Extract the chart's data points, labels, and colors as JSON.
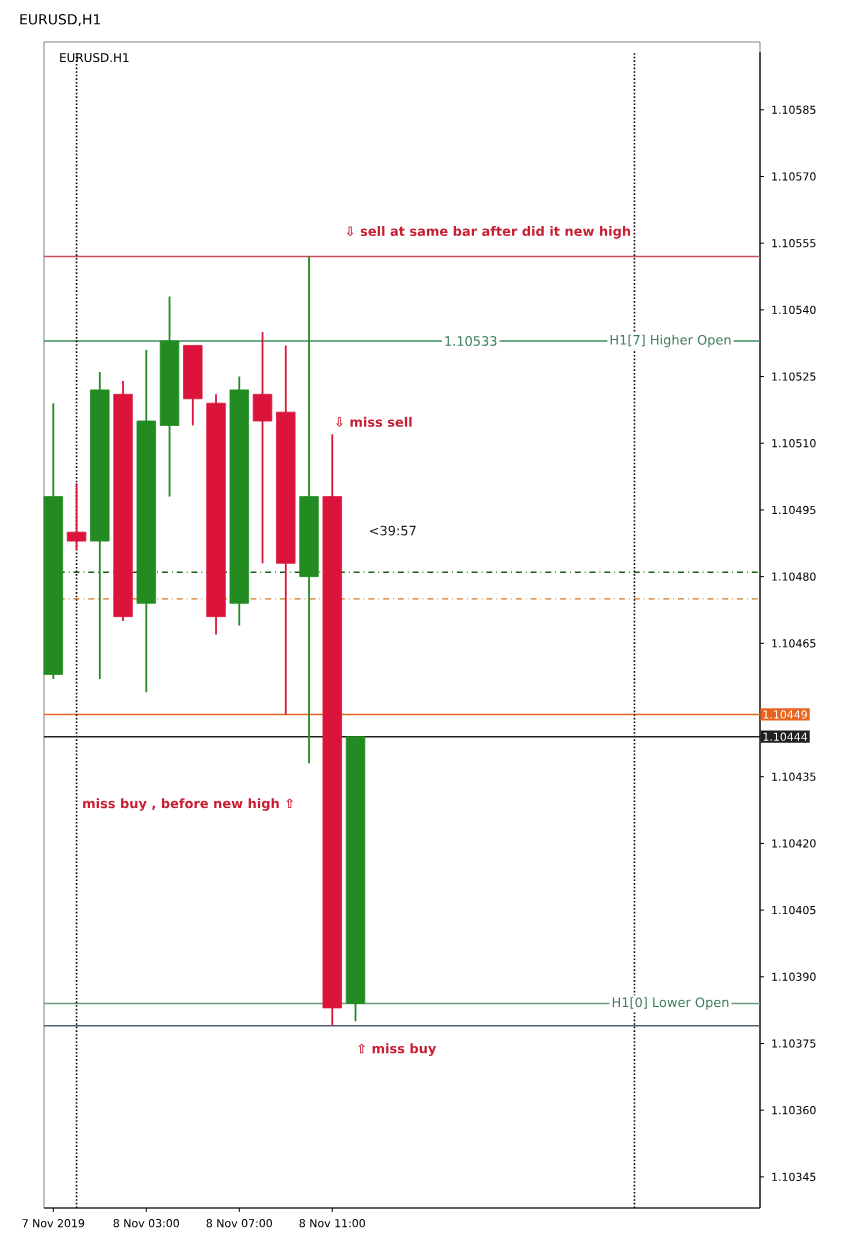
{
  "chart_data": {
    "type": "candlestick",
    "title": "EURUSD,H1",
    "subtitle": "EURUSD.H1",
    "x": [
      "2019-11-07T23:00",
      "2019-11-08T00:00",
      "2019-11-08T01:00",
      "2019-11-08T02:00",
      "2019-11-08T03:00",
      "2019-11-08T04:00",
      "2019-11-08T05:00",
      "2019-11-08T06:00",
      "2019-11-08T07:00",
      "2019-11-08T08:00",
      "2019-11-08T09:00",
      "2019-11-08T10:00",
      "2019-11-08T11:00",
      "2019-11-08T12:00"
    ],
    "xlim": [
      "2019-11-07T22:36",
      "2019-11-09T05:24"
    ],
    "xticks": [
      {
        "value": "2019-11-07T23:00",
        "label": "7 Nov 2019"
      },
      {
        "value": "2019-11-08T03:00",
        "label": "8 Nov 03:00"
      },
      {
        "value": "2019-11-08T07:00",
        "label": "8 Nov 07:00"
      },
      {
        "value": "2019-11-08T11:00",
        "label": "8 Nov 11:00"
      }
    ],
    "ohlc": [
      [
        1.10458,
        1.10519,
        1.10457,
        1.10498
      ],
      [
        1.1049,
        1.10501,
        1.10486,
        1.10488
      ],
      [
        1.10488,
        1.10526,
        1.10457,
        1.10522
      ],
      [
        1.10521,
        1.10524,
        1.1047,
        1.10471
      ],
      [
        1.10474,
        1.10531,
        1.10454,
        1.10515
      ],
      [
        1.10514,
        1.10543,
        1.10498,
        1.10533
      ],
      [
        1.10532,
        1.10532,
        1.10514,
        1.1052
      ],
      [
        1.10519,
        1.10521,
        1.10467,
        1.10471
      ],
      [
        1.10474,
        1.10525,
        1.10469,
        1.10522
      ],
      [
        1.10521,
        1.10535,
        1.10483,
        1.10515
      ],
      [
        1.10517,
        1.10532,
        1.10449,
        1.10483
      ],
      [
        1.1048,
        1.10552,
        1.10438,
        1.10498
      ],
      [
        1.10498,
        1.10512,
        1.10379,
        1.10383
      ],
      [
        1.10384,
        1.10444,
        1.1038,
        1.10444
      ]
    ],
    "colors": [
      "#228b22",
      "#dc143c",
      "#228b22",
      "#dc143c",
      "#228b22",
      "#228b22",
      "#dc143c",
      "#dc143c",
      "#228b22",
      "#dc143c",
      "#dc143c",
      "#228b22",
      "#dc143c",
      "#228b22"
    ],
    "ylim": [
      1.10338,
      1.10598
    ],
    "yticks": [
      1.10345,
      {
        "value": 1.1036,
        "label": "1.10360"
      },
      1.10375,
      {
        "value": 1.1039,
        "label": "1.10390"
      },
      1.10405,
      {
        "value": 1.1042,
        "label": "1.10420"
      },
      1.10435,
      1.10465,
      {
        "value": 1.1048,
        "label": "1.10480"
      },
      1.10495,
      {
        "value": 1.1051,
        "label": "1.10510"
      },
      1.10525,
      {
        "value": 1.1054,
        "label": "1.10540"
      },
      1.10555,
      {
        "value": 1.1057,
        "label": "1.10570"
      },
      1.10585
    ],
    "grid": false,
    "ref_lines": [
      {
        "axis": "y",
        "value": 1.10552,
        "color": "#c8505a",
        "line_style": "solid"
      },
      {
        "axis": "y",
        "value": 1.10533,
        "color": "#3c8c5a",
        "line_style": "solid"
      },
      {
        "axis": "y",
        "value": 1.10481,
        "color": "#1e5a1e",
        "line_style": "dashed"
      },
      {
        "axis": "y",
        "value": 1.10475,
        "color": "#d2781e",
        "line_style": "dashed"
      },
      {
        "axis": "y",
        "value": 1.10449,
        "color": "#e8641e",
        "line_style": "solid",
        "label": "1.10449"
      },
      {
        "axis": "y",
        "value": 1.10444,
        "color": "#202020",
        "line_style": "solid",
        "label": "1.10444"
      },
      {
        "axis": "y",
        "value": 1.10384,
        "color": "#6a9a7a",
        "line_style": "solid"
      },
      {
        "axis": "y",
        "value": 1.10379,
        "color": "#506070",
        "line_style": "solid"
      },
      {
        "axis": "x",
        "value": "2019-11-08T00:00",
        "color": "#000000",
        "line_style": "dotted"
      },
      {
        "axis": "x",
        "value": "2019-11-09T00:00",
        "color": "#000000",
        "line_style": "dotted"
      }
    ],
    "annotations": [
      "⇩   sell at same bar after  did it  new high",
      "⇩ miss sell",
      "miss buy , before new high ⇧",
      "⇧  miss buy",
      "<39:57",
      {
        "text": "1.10533",
        "y": 1.10533
      },
      {
        "text": "H1[7] Higher Open",
        "y": 1.10533
      },
      {
        "text": "H1[0] Lower Open",
        "y": 1.10384
      }
    ]
  }
}
